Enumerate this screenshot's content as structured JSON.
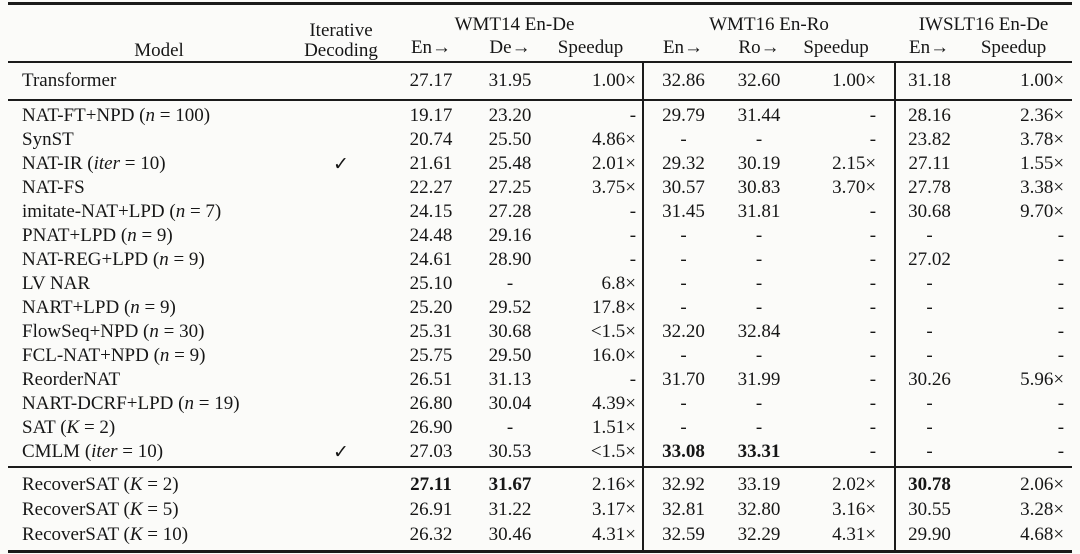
{
  "colors": {
    "text": "#161616",
    "rule": "#1b1b1b",
    "background": "#fbfbf9"
  },
  "paper_table": {
    "check_glyph": "✓",
    "header": {
      "model": "Model",
      "iterative_line1": "Iterative",
      "iterative_line2": "Decoding",
      "groups": [
        {
          "label": "WMT14 En-De",
          "cols": [
            "En→",
            "De→",
            "Speedup"
          ]
        },
        {
          "label": "WMT16 En-Ro",
          "cols": [
            "En→",
            "Ro→",
            "Speedup"
          ]
        },
        {
          "label": "IWSLT16 En-De",
          "cols": [
            "En→",
            "Speedup"
          ]
        }
      ]
    },
    "sections": [
      {
        "rows": [
          {
            "model": [
              [
                "Transformer",
                0
              ]
            ],
            "check": false,
            "cells": [
              "27.17",
              "31.95",
              "1.00×",
              "32.86",
              "32.60",
              "1.00×",
              "31.18",
              "1.00×"
            ],
            "bold": []
          }
        ]
      },
      {
        "rows": [
          {
            "model": [
              [
                "NAT-FT+NPD (",
                0
              ],
              [
                "n",
                1
              ],
              [
                " = 100)",
                0
              ]
            ],
            "check": false,
            "cells": [
              "19.17",
              "23.20",
              "-",
              "29.79",
              "31.44",
              "-",
              "28.16",
              "2.36×"
            ],
            "bold": []
          },
          {
            "model": [
              [
                "SynST",
                0
              ]
            ],
            "check": false,
            "cells": [
              "20.74",
              "25.50",
              "4.86×",
              "-",
              "-",
              "-",
              "23.82",
              "3.78×"
            ],
            "bold": []
          },
          {
            "model": [
              [
                "NAT-IR (",
                0
              ],
              [
                "iter",
                1
              ],
              [
                " = 10)",
                0
              ]
            ],
            "check": true,
            "cells": [
              "21.61",
              "25.48",
              "2.01×",
              "29.32",
              "30.19",
              "2.15×",
              "27.11",
              "1.55×"
            ],
            "bold": []
          },
          {
            "model": [
              [
                "NAT-FS",
                0
              ]
            ],
            "check": false,
            "cells": [
              "22.27",
              "27.25",
              "3.75×",
              "30.57",
              "30.83",
              "3.70×",
              "27.78",
              "3.38×"
            ],
            "bold": []
          },
          {
            "model": [
              [
                "imitate-NAT+LPD (",
                0
              ],
              [
                "n",
                1
              ],
              [
                " = 7)",
                0
              ]
            ],
            "check": false,
            "cells": [
              "24.15",
              "27.28",
              "-",
              "31.45",
              "31.81",
              "-",
              "30.68",
              "9.70×"
            ],
            "bold": []
          },
          {
            "model": [
              [
                "PNAT+LPD (",
                0
              ],
              [
                "n",
                1
              ],
              [
                " = 9)",
                0
              ]
            ],
            "check": false,
            "cells": [
              "24.48",
              "29.16",
              "-",
              "-",
              "-",
              "-",
              "-",
              "-"
            ],
            "bold": []
          },
          {
            "model": [
              [
                "NAT-REG+LPD (",
                0
              ],
              [
                "n",
                1
              ],
              [
                " = 9)",
                0
              ]
            ],
            "check": false,
            "cells": [
              "24.61",
              "28.90",
              "-",
              "-",
              "-",
              "-",
              "27.02",
              "-"
            ],
            "bold": []
          },
          {
            "model": [
              [
                "LV NAR",
                0
              ]
            ],
            "check": false,
            "cells": [
              "25.10",
              "-",
              "6.8×",
              "-",
              "-",
              "-",
              "-",
              "-"
            ],
            "bold": []
          },
          {
            "model": [
              [
                "NART+LPD (",
                0
              ],
              [
                "n",
                1
              ],
              [
                " = 9)",
                0
              ]
            ],
            "check": false,
            "cells": [
              "25.20",
              "29.52",
              "17.8×",
              "-",
              "-",
              "-",
              "-",
              "-"
            ],
            "bold": []
          },
          {
            "model": [
              [
                "FlowSeq+NPD (",
                0
              ],
              [
                "n",
                1
              ],
              [
                " = 30)",
                0
              ]
            ],
            "check": false,
            "cells": [
              "25.31",
              "30.68",
              "<1.5×",
              "32.20",
              "32.84",
              "-",
              "-",
              "-"
            ],
            "bold": []
          },
          {
            "model": [
              [
                "FCL-NAT+NPD (",
                0
              ],
              [
                "n",
                1
              ],
              [
                " = 9)",
                0
              ]
            ],
            "check": false,
            "cells": [
              "25.75",
              "29.50",
              "16.0×",
              "-",
              "-",
              "-",
              "-",
              "-"
            ],
            "bold": []
          },
          {
            "model": [
              [
                "ReorderNAT",
                0
              ]
            ],
            "check": false,
            "cells": [
              "26.51",
              "31.13",
              "-",
              "31.70",
              "31.99",
              "-",
              "30.26",
              "5.96×"
            ],
            "bold": []
          },
          {
            "model": [
              [
                "NART-DCRF+LPD (",
                0
              ],
              [
                "n",
                1
              ],
              [
                " = 19)",
                0
              ]
            ],
            "check": false,
            "cells": [
              "26.80",
              "30.04",
              "4.39×",
              "-",
              "-",
              "-",
              "-",
              "-"
            ],
            "bold": []
          },
          {
            "model": [
              [
                "SAT (",
                0
              ],
              [
                "K",
                1
              ],
              [
                " = 2)",
                0
              ]
            ],
            "check": false,
            "cells": [
              "26.90",
              "-",
              "1.51×",
              "-",
              "-",
              "-",
              "-",
              "-"
            ],
            "bold": []
          },
          {
            "model": [
              [
                "CMLM (",
                0
              ],
              [
                "iter",
                1
              ],
              [
                " = 10)",
                0
              ]
            ],
            "check": true,
            "cells": [
              "27.03",
              "30.53",
              "<1.5×",
              "33.08",
              "33.31",
              "-",
              "-",
              "-"
            ],
            "bold": [
              3,
              4
            ]
          }
        ]
      },
      {
        "rows": [
          {
            "model": [
              [
                "RecoverSAT (",
                0
              ],
              [
                "K",
                1
              ],
              [
                " = 2)",
                0
              ]
            ],
            "check": false,
            "cells": [
              "27.11",
              "31.67",
              "2.16×",
              "32.92",
              "33.19",
              "2.02×",
              "30.78",
              "2.06×"
            ],
            "bold": [
              0,
              1,
              6
            ]
          },
          {
            "model": [
              [
                "RecoverSAT (",
                0
              ],
              [
                "K",
                1
              ],
              [
                " = 5)",
                0
              ]
            ],
            "check": false,
            "cells": [
              "26.91",
              "31.22",
              "3.17×",
              "32.81",
              "32.80",
              "3.16×",
              "30.55",
              "3.28×"
            ],
            "bold": []
          },
          {
            "model": [
              [
                "RecoverSAT (",
                0
              ],
              [
                "K",
                1
              ],
              [
                " = 10)",
                0
              ]
            ],
            "check": false,
            "cells": [
              "26.32",
              "30.46",
              "4.31×",
              "32.59",
              "32.29",
              "4.31×",
              "29.90",
              "4.68×"
            ],
            "bold": []
          }
        ]
      }
    ]
  }
}
